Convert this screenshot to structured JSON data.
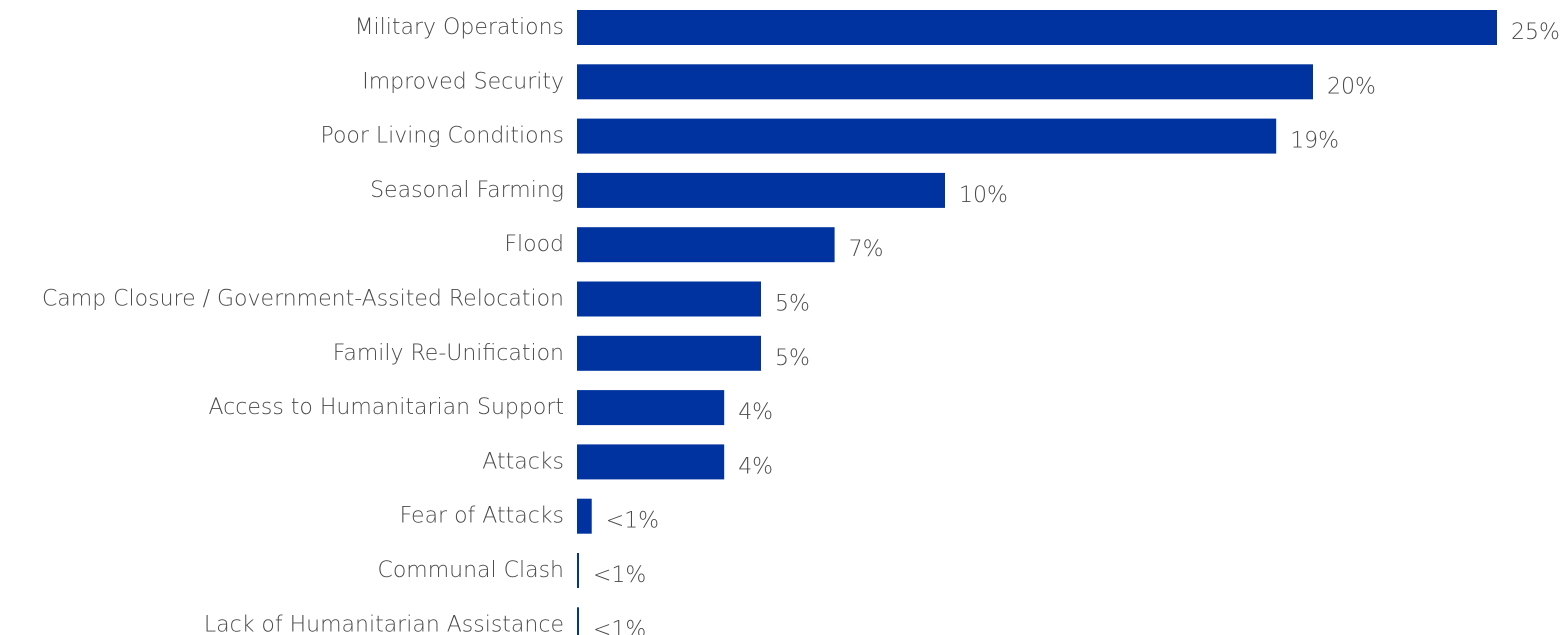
{
  "chart_data": {
    "type": "bar",
    "orientation": "horizontal",
    "title": "",
    "xlabel": "",
    "ylabel": "",
    "grid": false,
    "xlim": [
      0,
      25
    ],
    "categories": [
      "Military Operations",
      "Improved Security",
      "Poor Living Conditions",
      "Seasonal Farming",
      "Flood",
      "Camp Closure / Government-Assited Relocation",
      "Family Re-Unification",
      "Access to Humanitarian Support",
      "Attacks",
      "Fear of Attacks",
      "Communal Clash",
      "Lack of Humanitarian Assistance"
    ],
    "values": [
      25,
      20,
      19,
      10,
      7,
      5,
      5,
      4,
      4,
      0.4,
      0.05,
      0.05
    ],
    "value_labels": [
      "25%",
      "20%",
      "19%",
      "10%",
      "7%",
      "5%",
      "5%",
      "4%",
      "4%",
      "<1%",
      "<1%",
      "<1%"
    ],
    "colors": {
      "bar": "#0033a0",
      "text": "#4a4a4a"
    }
  }
}
